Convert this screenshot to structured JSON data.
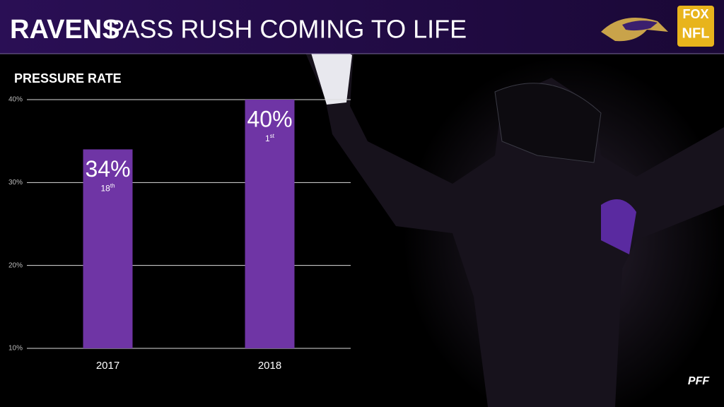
{
  "chart_data": {
    "type": "bar",
    "title": "RAVENS",
    "subtitle": "PASS RUSH COMING TO LIFE",
    "y_label": "PRESSURE RATE",
    "categories": [
      "2017",
      "2018"
    ],
    "values": [
      34,
      40
    ],
    "value_labels": [
      "34%",
      "40%"
    ],
    "ranks": [
      {
        "number": "18",
        "suffix": "th"
      },
      {
        "number": "1",
        "suffix": "st"
      }
    ],
    "color": "#6f35a5",
    "ylim": [
      10,
      40
    ],
    "yticks": [
      {
        "value": 10,
        "label": "10%"
      },
      {
        "value": 20,
        "label": "20%"
      },
      {
        "value": 30,
        "label": "30%"
      },
      {
        "value": 40,
        "label": "40%"
      }
    ],
    "grid": true
  },
  "logos": {
    "fox": "FOX",
    "nfl": "NFL",
    "pff": "PFF"
  }
}
